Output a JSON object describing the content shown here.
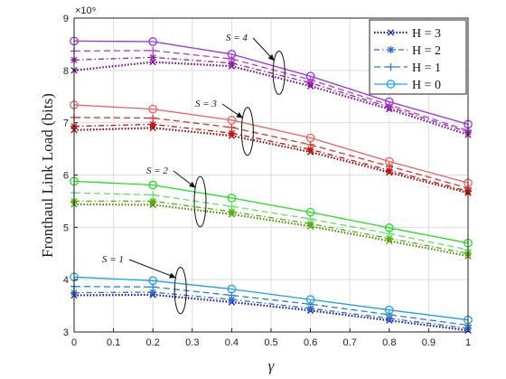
{
  "chart_data": {
    "type": "line",
    "title": "",
    "xlabel": "γ",
    "ylabel": "Fronthaul Link Load (bits)",
    "y_exponent_label": "×10⁹",
    "xlim": [
      0,
      1
    ],
    "ylim": [
      3,
      9
    ],
    "x_ticks": [
      "0",
      "0.1",
      "0.2",
      "0.3",
      "0.4",
      "0.5",
      "0.6",
      "0.7",
      "0.8",
      "0.9",
      "1"
    ],
    "y_ticks": [
      "3",
      "4",
      "5",
      "6",
      "7",
      "8",
      "9"
    ],
    "grid": true,
    "legend_position": "top-right",
    "legend": [
      {
        "label": "H = 3",
        "style": "dotted",
        "marker": "x"
      },
      {
        "label": "H = 2",
        "style": "dashdot",
        "marker": "asterisk"
      },
      {
        "label": "H = 1",
        "style": "dashed",
        "marker": "plus"
      },
      {
        "label": "H = 0",
        "style": "solid",
        "marker": "circle"
      }
    ],
    "x": [
      0,
      0.2,
      0.4,
      0.6,
      0.8,
      1
    ],
    "groups": [
      {
        "label": "S = 1",
        "series": [
          {
            "H": 3,
            "color": "#1010d0",
            "values": [
              3.7,
              3.71,
              3.57,
              3.41,
              3.22,
              3.03
            ]
          },
          {
            "H": 2,
            "color": "#2a6fd0",
            "values": [
              3.75,
              3.76,
              3.62,
              3.45,
              3.26,
              3.07
            ]
          },
          {
            "H": 1,
            "color": "#2a7fd0",
            "values": [
              3.87,
              3.86,
              3.7,
              3.53,
              3.33,
              3.13
            ]
          },
          {
            "H": 0,
            "color": "#1fa0e6",
            "values": [
              4.05,
              3.98,
              3.82,
              3.62,
              3.42,
              3.23
            ]
          }
        ]
      },
      {
        "label": "S = 2",
        "series": [
          {
            "H": 3,
            "color": "#4f8a00",
            "values": [
              5.44,
              5.43,
              5.25,
              5.02,
              4.74,
              4.45
            ]
          },
          {
            "H": 2,
            "color": "#49b800",
            "values": [
              5.5,
              5.5,
              5.3,
              5.07,
              4.79,
              4.5
            ]
          },
          {
            "H": 1,
            "color": "#5fe06a",
            "values": [
              5.66,
              5.62,
              5.4,
              5.16,
              4.88,
              4.57
            ]
          },
          {
            "H": 0,
            "color": "#22dd22",
            "values": [
              5.88,
              5.81,
              5.56,
              5.29,
              4.99,
              4.7
            ]
          }
        ]
      },
      {
        "label": "S = 3",
        "series": [
          {
            "H": 3,
            "color": "#a00000",
            "values": [
              6.86,
              6.9,
              6.75,
              6.44,
              6.05,
              5.66
            ]
          },
          {
            "H": 2,
            "color": "#cc1010",
            "values": [
              6.93,
              6.97,
              6.8,
              6.49,
              6.09,
              5.69
            ]
          },
          {
            "H": 1,
            "color": "#e03030",
            "values": [
              7.1,
              7.09,
              6.91,
              6.58,
              6.17,
              5.75
            ]
          },
          {
            "H": 0,
            "color": "#f06060",
            "values": [
              7.34,
              7.26,
              7.05,
              6.71,
              6.26,
              5.85
            ]
          }
        ]
      },
      {
        "label": "S = 4",
        "series": [
          {
            "H": 3,
            "color": "#7a0090",
            "values": [
              8.0,
              8.16,
              8.08,
              7.7,
              7.26,
              6.77
            ]
          },
          {
            "H": 2,
            "color": "#9a20b0",
            "values": [
              8.2,
              8.25,
              8.14,
              7.76,
              7.3,
              6.82
            ]
          },
          {
            "H": 1,
            "color": "#b040c8",
            "values": [
              8.37,
              8.38,
              8.22,
              7.82,
              7.34,
              6.85
            ]
          },
          {
            "H": 0,
            "color": "#9b30e0",
            "values": [
              8.56,
              8.55,
              8.31,
              7.89,
              7.4,
              6.97
            ]
          }
        ]
      }
    ]
  }
}
